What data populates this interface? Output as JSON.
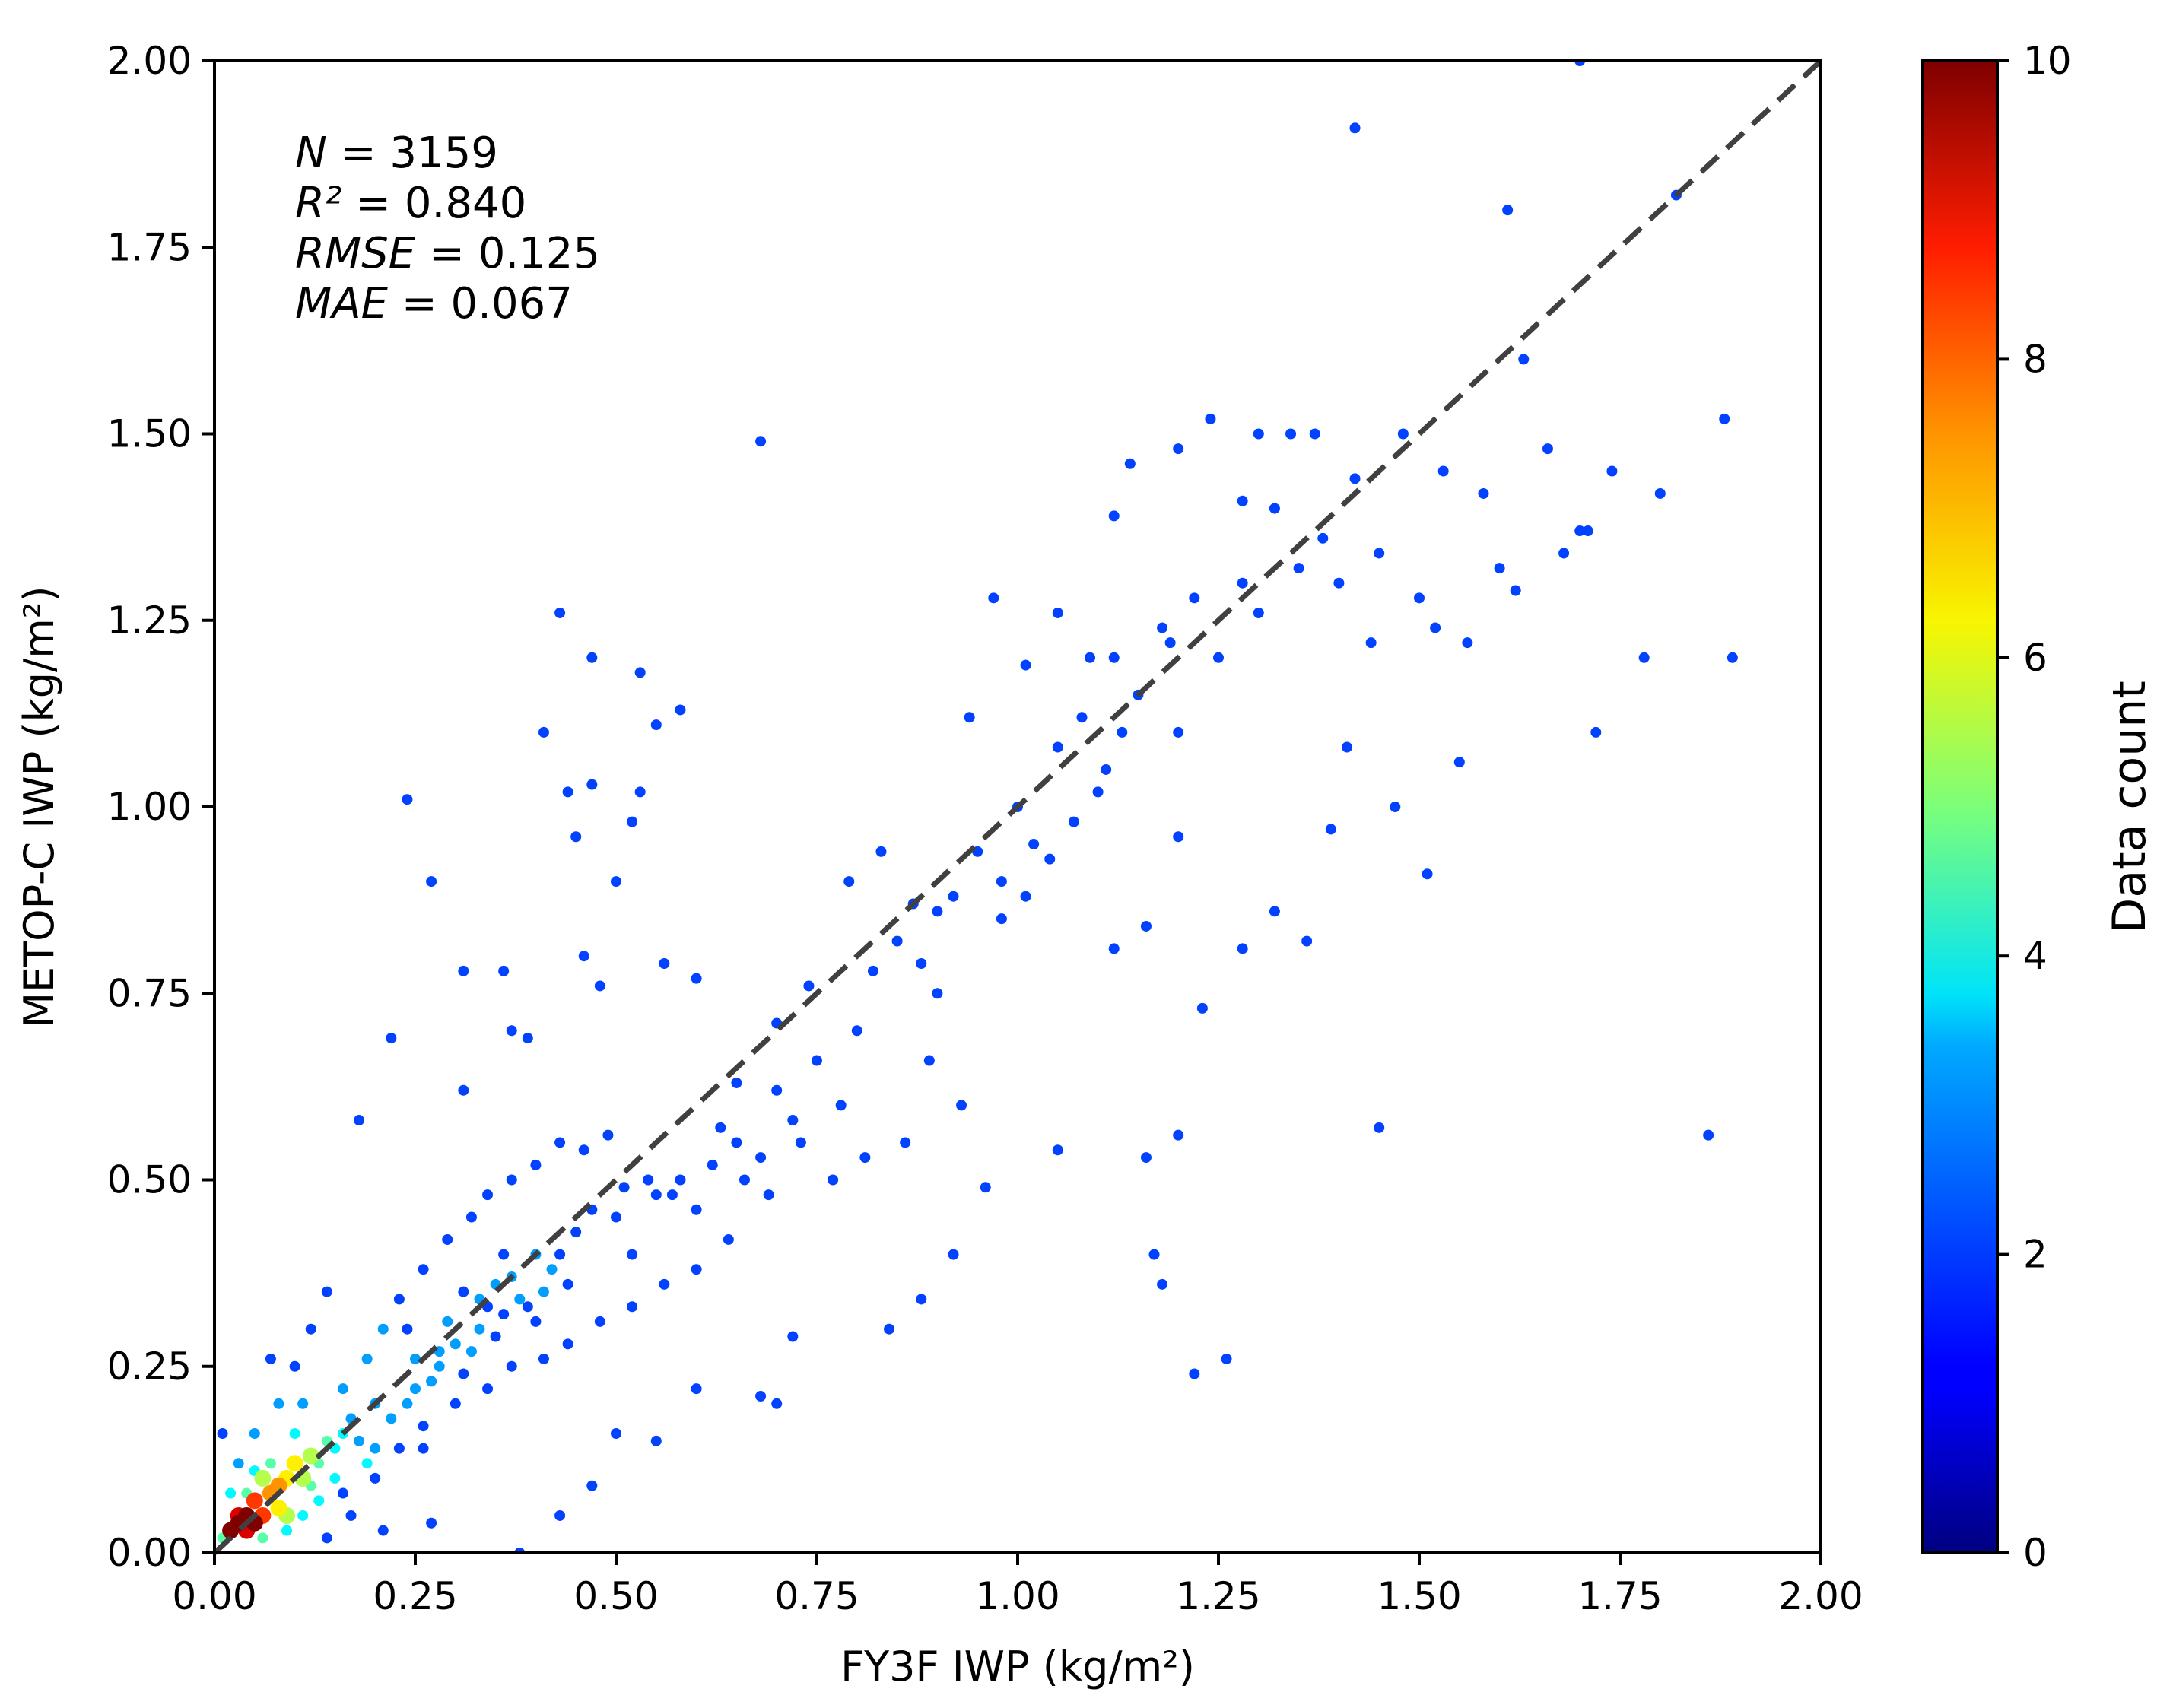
{
  "chart_data": {
    "type": "scatter",
    "xlabel": "FY3F IWP (kg/m²)",
    "ylabel": "METOP-C IWP (kg/m²)",
    "xlim": [
      0,
      2
    ],
    "ylim": [
      0,
      2
    ],
    "x_ticks": [
      "0.00",
      "0.25",
      "0.50",
      "0.75",
      "1.00",
      "1.25",
      "1.50",
      "1.75",
      "2.00"
    ],
    "y_ticks": [
      "0.00",
      "0.25",
      "0.50",
      "0.75",
      "1.00",
      "1.25",
      "1.50",
      "1.75",
      "2.00"
    ],
    "reference_line": {
      "from": [
        0,
        0
      ],
      "to": [
        2,
        2
      ],
      "style": "dashed",
      "color": "#404040"
    },
    "stats": [
      {
        "label": "N",
        "value": "3159"
      },
      {
        "label": "R²",
        "value": "0.840"
      },
      {
        "label": "RMSE",
        "value": "0.125"
      },
      {
        "label": "MAE",
        "value": "0.067"
      }
    ],
    "colorbar": {
      "label": "Data count",
      "colormap": "jet",
      "range": [
        0,
        10
      ],
      "ticks": [
        "0",
        "2",
        "4",
        "6",
        "8",
        "10"
      ]
    },
    "grid": false,
    "points_note_count": "representative sample of binned points (x, y, count)",
    "points": [
      [
        0.02,
        0.03,
        10
      ],
      [
        0.03,
        0.04,
        10
      ],
      [
        0.04,
        0.05,
        10
      ],
      [
        0.05,
        0.04,
        10
      ],
      [
        0.03,
        0.05,
        9
      ],
      [
        0.04,
        0.03,
        9
      ],
      [
        0.06,
        0.05,
        8
      ],
      [
        0.05,
        0.07,
        8
      ],
      [
        0.07,
        0.08,
        7
      ],
      [
        0.08,
        0.09,
        7
      ],
      [
        0.09,
        0.1,
        6
      ],
      [
        0.1,
        0.12,
        6
      ],
      [
        0.11,
        0.1,
        5
      ],
      [
        0.12,
        0.13,
        5
      ],
      [
        0.06,
        0.1,
        5
      ],
      [
        0.08,
        0.06,
        6
      ],
      [
        0.13,
        0.12,
        4
      ],
      [
        0.14,
        0.15,
        4
      ],
      [
        0.15,
        0.14,
        3
      ],
      [
        0.16,
        0.16,
        3
      ],
      [
        0.1,
        0.16,
        3
      ],
      [
        0.12,
        0.09,
        4
      ],
      [
        0.07,
        0.12,
        4
      ],
      [
        0.09,
        0.05,
        5
      ],
      [
        0.02,
        0.08,
        3
      ],
      [
        0.01,
        0.02,
        4
      ],
      [
        0.05,
        0.11,
        3
      ],
      [
        0.18,
        0.15,
        2
      ],
      [
        0.2,
        0.2,
        2
      ],
      [
        0.25,
        0.22,
        2
      ],
      [
        0.28,
        0.27,
        2
      ],
      [
        0.3,
        0.28,
        2
      ],
      [
        0.33,
        0.3,
        2
      ],
      [
        0.35,
        0.36,
        2
      ],
      [
        0.38,
        0.34,
        2
      ],
      [
        0.4,
        0.4,
        2
      ],
      [
        0.42,
        0.38,
        2
      ],
      [
        0.45,
        0.43,
        1
      ],
      [
        0.22,
        0.18,
        2
      ],
      [
        0.27,
        0.23,
        2
      ],
      [
        0.24,
        0.3,
        1
      ],
      [
        0.31,
        0.35,
        1
      ],
      [
        0.36,
        0.32,
        1
      ],
      [
        0.4,
        0.31,
        1
      ],
      [
        0.44,
        0.36,
        1
      ],
      [
        0.47,
        0.46,
        1
      ],
      [
        0.5,
        0.45,
        1
      ],
      [
        0.52,
        0.4,
        1
      ],
      [
        0.55,
        0.48,
        1
      ],
      [
        0.58,
        0.5,
        1
      ],
      [
        0.6,
        0.46,
        1
      ],
      [
        0.62,
        0.52,
        1
      ],
      [
        0.65,
        0.55,
        1
      ],
      [
        0.68,
        0.53,
        1
      ],
      [
        0.7,
        0.62,
        1
      ],
      [
        0.72,
        0.58,
        1
      ],
      [
        0.75,
        0.66,
        1
      ],
      [
        0.78,
        0.6,
        1
      ],
      [
        0.8,
        0.7,
        1
      ],
      [
        0.82,
        0.78,
        1
      ],
      [
        0.85,
        0.82,
        1
      ],
      [
        0.88,
        0.79,
        1
      ],
      [
        0.9,
        0.86,
        1
      ],
      [
        0.92,
        0.88,
        1
      ],
      [
        0.95,
        0.94,
        1
      ],
      [
        0.98,
        0.9,
        1
      ],
      [
        1.0,
        1.0,
        1
      ],
      [
        1.02,
        0.95,
        1
      ],
      [
        1.05,
        1.08,
        1
      ],
      [
        1.08,
        1.12,
        1
      ],
      [
        1.1,
        1.02,
        1
      ],
      [
        1.12,
        1.2,
        1
      ],
      [
        1.15,
        1.15,
        1
      ],
      [
        1.18,
        1.24,
        1
      ],
      [
        1.2,
        1.1,
        1
      ],
      [
        1.22,
        1.28,
        1
      ],
      [
        1.25,
        1.2,
        1
      ],
      [
        1.28,
        1.3,
        1
      ],
      [
        1.3,
        1.26,
        1
      ],
      [
        1.32,
        1.4,
        1
      ],
      [
        1.35,
        1.32,
        1
      ],
      [
        1.38,
        1.36,
        1
      ],
      [
        1.4,
        1.3,
        1
      ],
      [
        1.42,
        1.44,
        1
      ],
      [
        1.45,
        1.34,
        1
      ],
      [
        1.48,
        1.5,
        1
      ],
      [
        1.5,
        1.28,
        1
      ],
      [
        1.52,
        1.24,
        1
      ],
      [
        1.55,
        1.06,
        1
      ],
      [
        1.58,
        1.42,
        1
      ],
      [
        1.6,
        1.32,
        1
      ],
      [
        1.63,
        1.6,
        1
      ],
      [
        1.66,
        1.48,
        1
      ],
      [
        1.7,
        1.37,
        1
      ],
      [
        1.72,
        1.1,
        1
      ],
      [
        1.74,
        1.45,
        1
      ],
      [
        1.78,
        1.2,
        1
      ],
      [
        1.8,
        1.42,
        1
      ],
      [
        1.82,
        1.82,
        1
      ],
      [
        1.86,
        0.56,
        1
      ],
      [
        1.88,
        1.52,
        1
      ],
      [
        1.89,
        1.2,
        1
      ],
      [
        1.7,
        2.0,
        1
      ],
      [
        1.42,
        1.91,
        1
      ],
      [
        1.61,
        1.8,
        1
      ],
      [
        0.68,
        1.49,
        1
      ],
      [
        0.43,
        1.26,
        1
      ],
      [
        0.47,
        1.2,
        1
      ],
      [
        0.53,
        1.18,
        1
      ],
      [
        0.58,
        1.13,
        1
      ],
      [
        0.55,
        1.11,
        1
      ],
      [
        0.41,
        1.1,
        1
      ],
      [
        0.24,
        1.01,
        1
      ],
      [
        0.27,
        0.9,
        1
      ],
      [
        0.44,
        1.02,
        1
      ],
      [
        0.47,
        1.03,
        1
      ],
      [
        0.52,
        0.98,
        1
      ],
      [
        0.53,
        1.02,
        1
      ],
      [
        0.5,
        0.9,
        1
      ],
      [
        0.45,
        0.96,
        1
      ],
      [
        0.31,
        0.78,
        1
      ],
      [
        0.36,
        0.78,
        1
      ],
      [
        0.37,
        0.7,
        1
      ],
      [
        0.39,
        0.69,
        1
      ],
      [
        0.22,
        0.69,
        1
      ],
      [
        0.18,
        0.58,
        1
      ],
      [
        0.31,
        0.62,
        1
      ],
      [
        0.46,
        0.8,
        1
      ],
      [
        0.48,
        0.76,
        1
      ],
      [
        0.56,
        0.79,
        1
      ],
      [
        0.6,
        0.77,
        1
      ],
      [
        0.65,
        0.63,
        1
      ],
      [
        0.7,
        0.71,
        1
      ],
      [
        0.74,
        0.76,
        1
      ],
      [
        0.79,
        0.9,
        1
      ],
      [
        0.83,
        0.94,
        1
      ],
      [
        0.87,
        0.87,
        1
      ],
      [
        0.9,
        0.75,
        1
      ],
      [
        0.94,
        1.12,
        1
      ],
      [
        0.97,
        1.28,
        1
      ],
      [
        1.01,
        1.19,
        1
      ],
      [
        1.05,
        1.26,
        1
      ],
      [
        1.09,
        1.2,
        1
      ],
      [
        1.12,
        1.39,
        1
      ],
      [
        1.14,
        1.46,
        1
      ],
      [
        1.19,
        1.22,
        1
      ],
      [
        1.2,
        1.48,
        1
      ],
      [
        1.24,
        1.52,
        1
      ],
      [
        1.28,
        1.41,
        1
      ],
      [
        1.3,
        1.5,
        1
      ],
      [
        1.34,
        1.5,
        1
      ],
      [
        1.37,
        1.5,
        1
      ],
      [
        1.12,
        0.81,
        1
      ],
      [
        1.17,
        0.4,
        1
      ],
      [
        1.18,
        0.36,
        1
      ],
      [
        1.22,
        0.24,
        1
      ],
      [
        1.26,
        0.26,
        1
      ],
      [
        1.2,
        0.56,
        1
      ],
      [
        1.16,
        0.53,
        1
      ],
      [
        1.45,
        0.57,
        1
      ],
      [
        1.05,
        0.54,
        1
      ],
      [
        0.96,
        0.49,
        1
      ],
      [
        0.92,
        0.4,
        1
      ],
      [
        0.88,
        0.34,
        1
      ],
      [
        0.84,
        0.3,
        1
      ],
      [
        0.72,
        0.29,
        1
      ],
      [
        0.7,
        0.2,
        1
      ],
      [
        0.68,
        0.21,
        1
      ],
      [
        0.6,
        0.22,
        1
      ],
      [
        0.55,
        0.15,
        1
      ],
      [
        0.5,
        0.16,
        1
      ],
      [
        0.47,
        0.09,
        1
      ],
      [
        0.43,
        0.05,
        1
      ],
      [
        0.38,
        0.0,
        1
      ],
      [
        0.27,
        0.04,
        1
      ],
      [
        0.21,
        0.03,
        1
      ],
      [
        0.17,
        0.05,
        1
      ],
      [
        0.14,
        0.02,
        1
      ],
      [
        0.16,
        0.08,
        1
      ],
      [
        0.2,
        0.1,
        1
      ],
      [
        0.23,
        0.14,
        1
      ],
      [
        0.26,
        0.17,
        1
      ],
      [
        0.3,
        0.2,
        1
      ],
      [
        0.34,
        0.22,
        1
      ],
      [
        0.37,
        0.25,
        1
      ],
      [
        0.41,
        0.26,
        1
      ],
      [
        0.44,
        0.28,
        1
      ],
      [
        0.48,
        0.31,
        1
      ],
      [
        0.52,
        0.33,
        1
      ],
      [
        0.56,
        0.36,
        1
      ],
      [
        0.6,
        0.38,
        1
      ],
      [
        0.64,
        0.42,
        1
      ],
      [
        0.08,
        0.2,
        2
      ],
      [
        0.1,
        0.25,
        1
      ],
      [
        0.12,
        0.3,
        1
      ],
      [
        0.14,
        0.35,
        1
      ],
      [
        0.07,
        0.26,
        1
      ],
      [
        0.05,
        0.16,
        2
      ],
      [
        0.03,
        0.12,
        2
      ],
      [
        0.01,
        0.16,
        1
      ],
      [
        0.11,
        0.2,
        2
      ],
      [
        0.16,
        0.22,
        2
      ],
      [
        0.19,
        0.26,
        2
      ],
      [
        0.21,
        0.3,
        2
      ],
      [
        0.23,
        0.34,
        1
      ],
      [
        0.26,
        0.38,
        1
      ],
      [
        0.29,
        0.42,
        1
      ],
      [
        0.32,
        0.45,
        1
      ],
      [
        0.34,
        0.48,
        1
      ],
      [
        0.37,
        0.5,
        1
      ],
      [
        0.4,
        0.52,
        1
      ],
      [
        0.43,
        0.55,
        1
      ],
      [
        0.46,
        0.54,
        1
      ],
      [
        0.49,
        0.56,
        1
      ],
      [
        0.51,
        0.49,
        1
      ],
      [
        0.54,
        0.5,
        1
      ],
      [
        0.57,
        0.48,
        1
      ],
      [
        0.63,
        0.57,
        1
      ],
      [
        0.66,
        0.5,
        1
      ],
      [
        0.69,
        0.48,
        1
      ],
      [
        0.73,
        0.55,
        1
      ],
      [
        0.77,
        0.5,
        1
      ],
      [
        0.81,
        0.53,
        1
      ],
      [
        0.86,
        0.55,
        1
      ],
      [
        0.89,
        0.66,
        1
      ],
      [
        0.93,
        0.6,
        1
      ],
      [
        0.98,
        0.85,
        1
      ],
      [
        1.01,
        0.88,
        1
      ],
      [
        1.04,
        0.93,
        1
      ],
      [
        1.07,
        0.98,
        1
      ],
      [
        1.11,
        1.05,
        1
      ],
      [
        1.13,
        1.1,
        1
      ],
      [
        1.16,
        0.84,
        1
      ],
      [
        1.2,
        0.96,
        1
      ],
      [
        1.23,
        0.73,
        1
      ],
      [
        1.28,
        0.81,
        1
      ],
      [
        1.32,
        0.86,
        1
      ],
      [
        1.36,
        0.82,
        1
      ],
      [
        1.39,
        0.97,
        1
      ],
      [
        1.41,
        1.08,
        1
      ],
      [
        1.44,
        1.22,
        1
      ],
      [
        1.47,
        1.0,
        1
      ],
      [
        1.51,
        0.91,
        1
      ],
      [
        1.53,
        1.45,
        1
      ],
      [
        1.56,
        1.22,
        1
      ],
      [
        1.62,
        1.29,
        1
      ],
      [
        1.68,
        1.34,
        1
      ],
      [
        1.71,
        1.37,
        1
      ],
      [
        0.19,
        0.12,
        3
      ],
      [
        0.17,
        0.18,
        2
      ],
      [
        0.15,
        0.1,
        3
      ],
      [
        0.13,
        0.07,
        3
      ],
      [
        0.11,
        0.05,
        3
      ],
      [
        0.09,
        0.03,
        3
      ],
      [
        0.06,
        0.02,
        4
      ],
      [
        0.04,
        0.08,
        4
      ],
      [
        0.2,
        0.14,
        2
      ],
      [
        0.24,
        0.2,
        2
      ],
      [
        0.28,
        0.25,
        2
      ],
      [
        0.32,
        0.27,
        2
      ],
      [
        0.35,
        0.29,
        1
      ],
      [
        0.39,
        0.33,
        1
      ],
      [
        0.41,
        0.35,
        2
      ],
      [
        0.43,
        0.4,
        1
      ],
      [
        0.25,
        0.26,
        2
      ],
      [
        0.29,
        0.31,
        2
      ],
      [
        0.33,
        0.34,
        2
      ],
      [
        0.37,
        0.37,
        2
      ],
      [
        0.31,
        0.24,
        1
      ],
      [
        0.36,
        0.4,
        1
      ],
      [
        0.34,
        0.33,
        1
      ],
      [
        0.26,
        0.14,
        1
      ]
    ]
  }
}
